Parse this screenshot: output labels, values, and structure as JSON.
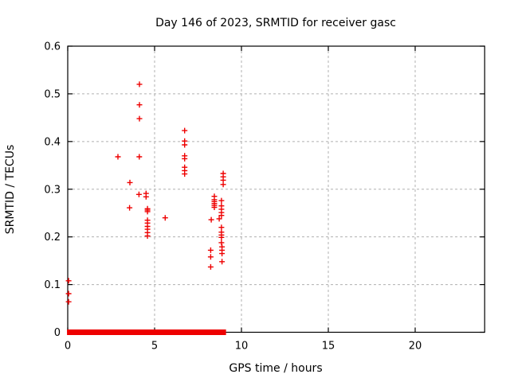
{
  "chart_data": {
    "type": "scatter",
    "title": "Day 146 of 2023, SRMTID for receiver gasc",
    "xlabel": "GPS time / hours",
    "ylabel": "SRMTID / TECUs",
    "xlim": [
      0,
      24
    ],
    "ylim": [
      0,
      0.6
    ],
    "xticks": [
      0,
      5,
      10,
      15,
      20
    ],
    "yticks": [
      0,
      0.1,
      0.2,
      0.3,
      0.4,
      0.5,
      0.6
    ],
    "grid": "dashed",
    "legend": "none",
    "marker": "plus",
    "marker_color": "#ee0000",
    "grid_color": "#b0b0b0",
    "border_color": "#000000",
    "series_name": "SRMTID",
    "points": [
      [
        0.05,
        0.108
      ],
      [
        0.05,
        0.081
      ],
      [
        0.05,
        0.064
      ],
      [
        2.89,
        0.368
      ],
      [
        3.58,
        0.314
      ],
      [
        3.56,
        0.261
      ],
      [
        4.13,
        0.52
      ],
      [
        4.13,
        0.477
      ],
      [
        4.13,
        0.448
      ],
      [
        4.12,
        0.368
      ],
      [
        4.1,
        0.289
      ],
      [
        4.51,
        0.291
      ],
      [
        4.51,
        0.284
      ],
      [
        4.59,
        0.259
      ],
      [
        4.59,
        0.256
      ],
      [
        4.59,
        0.253
      ],
      [
        4.59,
        0.235
      ],
      [
        4.59,
        0.229
      ],
      [
        4.59,
        0.222
      ],
      [
        4.59,
        0.216
      ],
      [
        4.59,
        0.209
      ],
      [
        4.59,
        0.202
      ],
      [
        5.61,
        0.24
      ],
      [
        6.73,
        0.423
      ],
      [
        6.73,
        0.401
      ],
      [
        6.73,
        0.393
      ],
      [
        6.73,
        0.37
      ],
      [
        6.73,
        0.364
      ],
      [
        6.73,
        0.346
      ],
      [
        6.73,
        0.339
      ],
      [
        6.73,
        0.332
      ],
      [
        8.26,
        0.236
      ],
      [
        8.23,
        0.172
      ],
      [
        8.23,
        0.158
      ],
      [
        8.23,
        0.137
      ],
      [
        8.44,
        0.285
      ],
      [
        8.44,
        0.278
      ],
      [
        8.44,
        0.274
      ],
      [
        8.44,
        0.27
      ],
      [
        8.44,
        0.266
      ],
      [
        8.44,
        0.262
      ],
      [
        8.72,
        0.238
      ],
      [
        8.85,
        0.276
      ],
      [
        8.85,
        0.265
      ],
      [
        8.85,
        0.258
      ],
      [
        8.85,
        0.251
      ],
      [
        8.85,
        0.245
      ],
      [
        8.85,
        0.22
      ],
      [
        8.85,
        0.21
      ],
      [
        8.85,
        0.204
      ],
      [
        8.85,
        0.199
      ],
      [
        8.85,
        0.188
      ],
      [
        8.88,
        0.179
      ],
      [
        8.88,
        0.172
      ],
      [
        8.88,
        0.165
      ],
      [
        8.88,
        0.148
      ],
      [
        8.95,
        0.333
      ],
      [
        8.95,
        0.326
      ],
      [
        8.95,
        0.319
      ],
      [
        8.95,
        0.31
      ]
    ],
    "zero_value_runs_hours": [
      [
        0.05,
        1.58
      ],
      [
        1.74,
        4.6
      ],
      [
        4.74,
        6.68
      ],
      [
        6.84,
        8.39
      ],
      [
        8.54,
        8.93
      ],
      [
        8.97,
        9.02
      ]
    ]
  }
}
